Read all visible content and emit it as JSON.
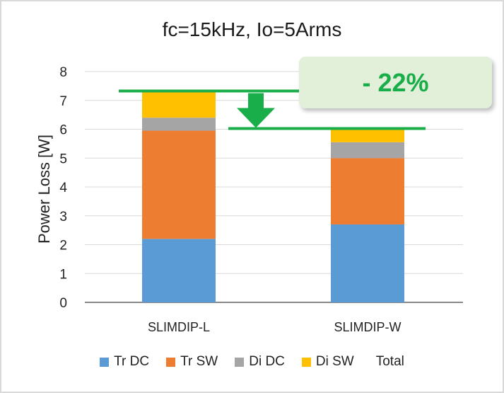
{
  "chart_data": {
    "type": "bar",
    "stacked": true,
    "title": "fc=15kHz, Io=5Arms",
    "xlabel": "",
    "ylabel": "Power Loss [W]",
    "ylim": [
      0,
      8
    ],
    "yticks": [
      "0",
      "1",
      "2",
      "3",
      "4",
      "5",
      "6",
      "7",
      "8"
    ],
    "grid": true,
    "legend_position": "bottom",
    "categories": [
      "SLIMDIP-L",
      "SLIMDIP-W"
    ],
    "series": [
      {
        "name": "Tr DC",
        "color": "#5b9bd5",
        "values": [
          2.2,
          2.7
        ]
      },
      {
        "name": "Tr SW",
        "color": "#ed7d31",
        "values": [
          3.75,
          2.3
        ]
      },
      {
        "name": "Di DC",
        "color": "#a5a5a5",
        "values": [
          0.45,
          0.55
        ]
      },
      {
        "name": "Di SW",
        "color": "#ffc000",
        "values": [
          0.9,
          0.45
        ]
      }
    ],
    "legend": [
      "Tr DC",
      "Tr SW",
      "Di DC",
      "Di SW",
      "Total"
    ],
    "totals": [
      7.3,
      6.0
    ],
    "annotation": {
      "text": "- 22%",
      "color": "#1aae4a",
      "background": "#e2efd9"
    }
  }
}
